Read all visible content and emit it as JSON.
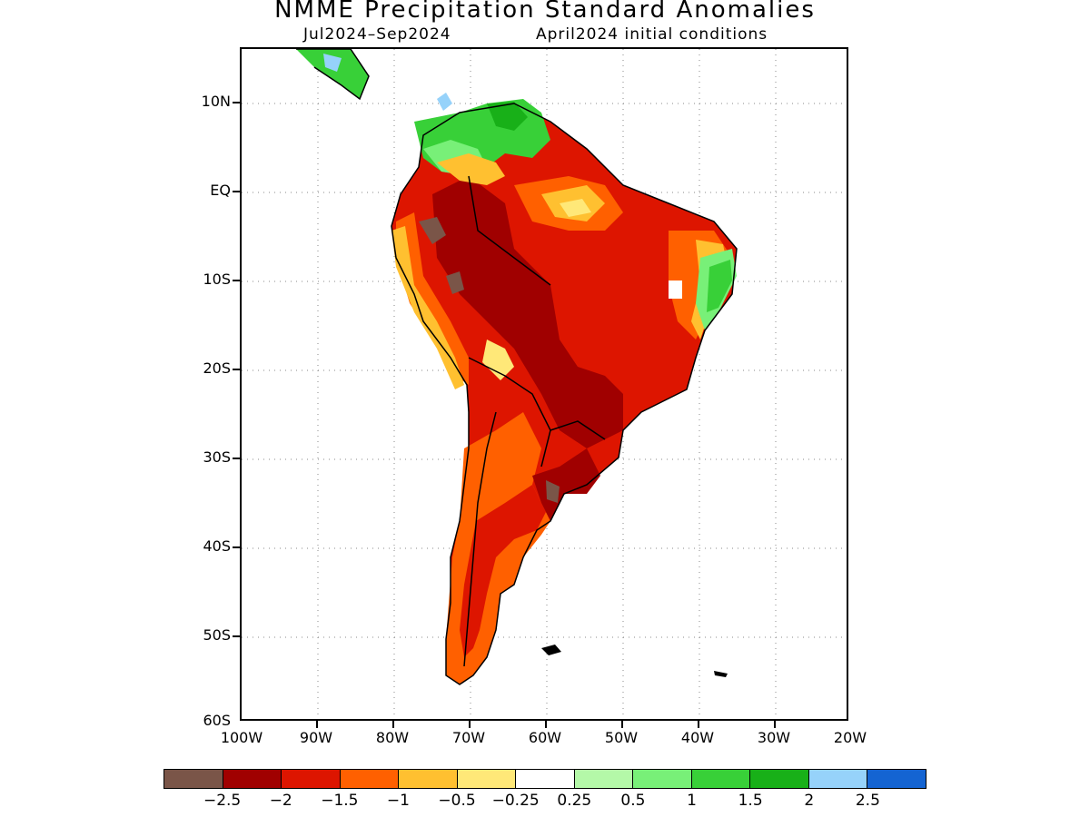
{
  "header": {
    "title": "NMME Precipitation Standard Anomalies",
    "period": "Jul2024–Sep2024",
    "init": "April2024 initial conditions"
  },
  "axes": {
    "y_labels": [
      "10N",
      "EQ",
      "10S",
      "20S",
      "30S",
      "40S",
      "50S",
      "60S"
    ],
    "x_labels": [
      "100W",
      "90W",
      "80W",
      "70W",
      "60W",
      "50W",
      "40W",
      "30W",
      "20W"
    ]
  },
  "legend": {
    "colors": [
      "#7a5548",
      "#a00000",
      "#dd1500",
      "#ff6000",
      "#ffc030",
      "#ffe878",
      "#ffffff",
      "#b4f8a8",
      "#78f078",
      "#38d038",
      "#18b018",
      "#96d2fa",
      "#1464d2"
    ],
    "labels": [
      "−2.5",
      "−2",
      "−1.5",
      "−1",
      "−0.5",
      "−0.25",
      "0.25",
      "0.5",
      "1",
      "1.5",
      "2",
      "2.5"
    ]
  },
  "map_features": {
    "wet_regions": [
      "Colombia/Venezuela north coast",
      "Northeast Brazil coast",
      "Central America"
    ],
    "dry_regions": [
      "Amazon basin",
      "Bolivia/Paraguay",
      "Argentina"
    ]
  }
}
